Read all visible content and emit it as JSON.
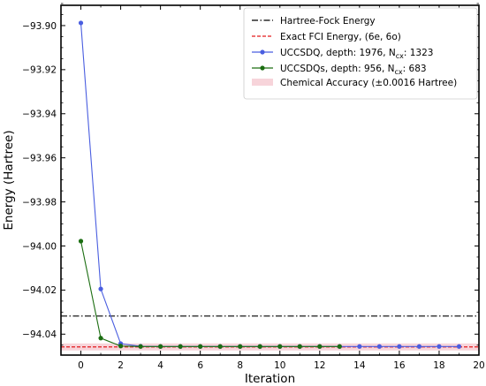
{
  "chart_data": {
    "type": "line",
    "xlabel": "Iteration",
    "ylabel": "Energy (Hartree)",
    "xlim": [
      -1,
      20
    ],
    "ylim": [
      -94.0495,
      -93.8908
    ],
    "xticks": [
      0,
      2,
      4,
      6,
      8,
      10,
      12,
      14,
      16,
      18,
      20
    ],
    "xtick_labels": [
      "0",
      "2",
      "4",
      "6",
      "8",
      "10",
      "12",
      "14",
      "16",
      "18",
      "20"
    ],
    "yticks": [
      -93.9,
      -93.92,
      -93.94,
      -93.96,
      -93.98,
      -94.0,
      -94.02,
      -94.04
    ],
    "ytick_labels": [
      "−93.90",
      "−93.92",
      "−93.94",
      "−93.96",
      "−93.98",
      "−94.00",
      "−94.02",
      "−94.04"
    ],
    "grid": false,
    "legend_position": "top-right",
    "hf_energy": -94.0318,
    "fci_energy": -94.0458,
    "chemical_accuracy": 0.0016,
    "legend": {
      "hf": "Hartree-Fock Energy",
      "fci": "Exact FCI Energy, (6e, 6o)",
      "uccsdq_prefix": "UCCSDQ, depth: 1976, N",
      "uccsdq_sub": "cx",
      "uccsdq_suffix": ": 1323",
      "uccsdqs_prefix": "UCCSDQs, depth: 956, N",
      "uccsdqs_sub": "cx",
      "uccsdqs_suffix": ": 683",
      "chem": "Chemical Accuracy (±0.0016 Hartree)"
    },
    "colors": {
      "hf": "#000000",
      "fci": "#e41a1c",
      "uccsdq": "#4a5ee0",
      "uccsdqs": "#1c6e12",
      "chem_fill": "#f4c6cd"
    },
    "series": [
      {
        "name": "UCCSDQ, depth: 1976, Ncx: 1323",
        "x": [
          0,
          1,
          2,
          3,
          4,
          5,
          6,
          7,
          8,
          9,
          10,
          11,
          12,
          13,
          14,
          15,
          16,
          17,
          18,
          19
        ],
        "values": [
          -93.8988,
          -94.0195,
          -94.0443,
          -94.0455,
          -94.0456,
          -94.0456,
          -94.0456,
          -94.0456,
          -94.0456,
          -94.0456,
          -94.0456,
          -94.0456,
          -94.0456,
          -94.0456,
          -94.0456,
          -94.0456,
          -94.0456,
          -94.0456,
          -94.0456,
          -94.0456
        ]
      },
      {
        "name": "UCCSDQs, depth: 956, Ncx: 683",
        "x": [
          0,
          1,
          2,
          3,
          4,
          5,
          6,
          7,
          8,
          9,
          10,
          11,
          12,
          13
        ],
        "values": [
          -93.9978,
          -94.0418,
          -94.0454,
          -94.0456,
          -94.0456,
          -94.0456,
          -94.0456,
          -94.0456,
          -94.0456,
          -94.0456,
          -94.0456,
          -94.0456,
          -94.0456,
          -94.0456
        ]
      }
    ]
  }
}
